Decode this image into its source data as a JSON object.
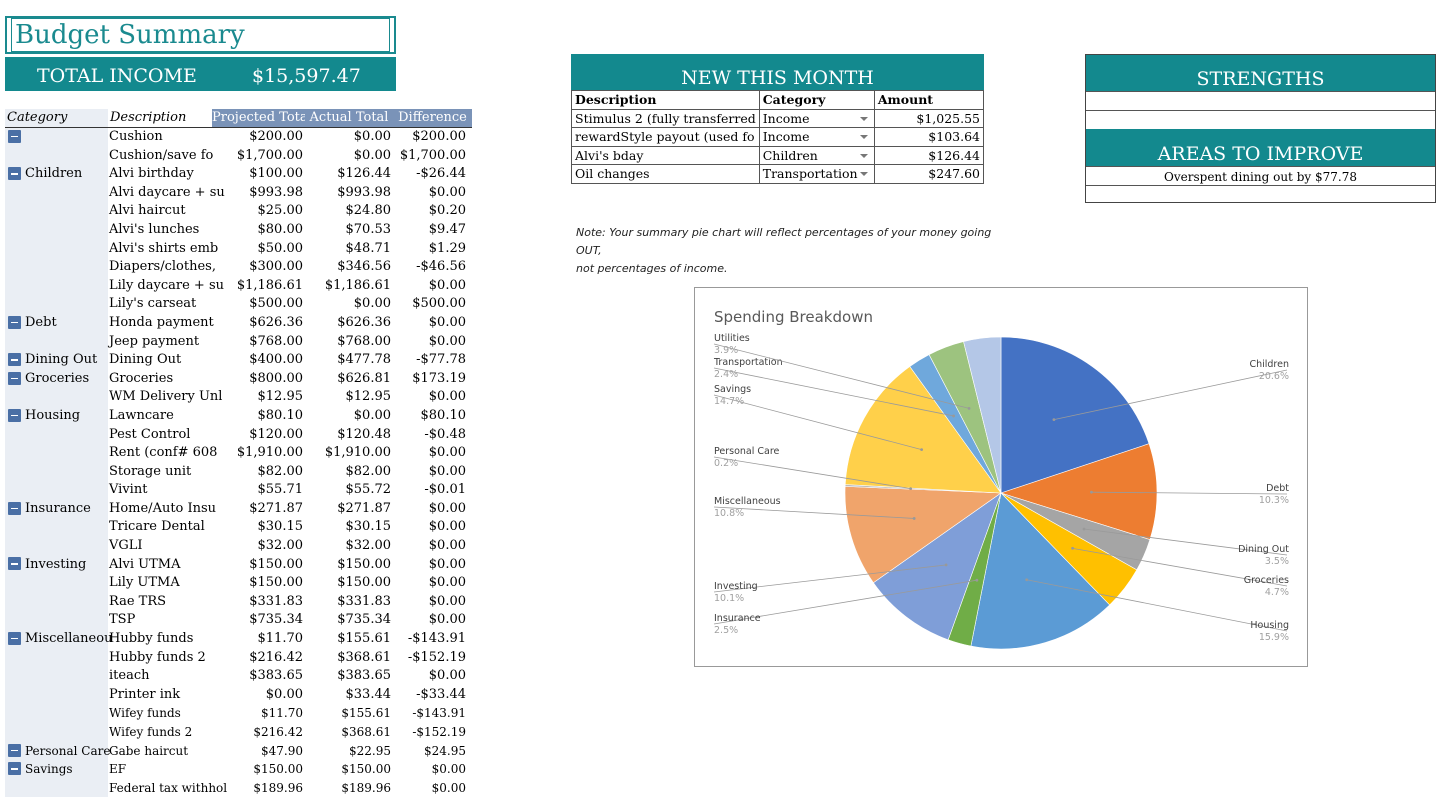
{
  "title": "Budget Summary",
  "total_income": {
    "label": "TOTAL INCOME",
    "value": "$15,597.47"
  },
  "table": {
    "headers": {
      "category": "Category",
      "description": "Description",
      "projected": "Projected Total",
      "actual": "Actual Total",
      "difference": "Difference"
    },
    "rows": [
      {
        "category": "",
        "group": true,
        "desc": "Cushion",
        "proj": "$200.00",
        "act": "$0.00",
        "diff": "$200.00"
      },
      {
        "category": "",
        "group": false,
        "desc": "Cushion/save fo",
        "proj": "$1,700.00",
        "act": "$0.00",
        "diff": "$1,700.00"
      },
      {
        "category": "Children",
        "group": true,
        "desc": "Alvi birthday",
        "proj": "$100.00",
        "act": "$126.44",
        "diff": "-$26.44"
      },
      {
        "category": "",
        "group": false,
        "desc": "Alvi daycare + su",
        "proj": "$993.98",
        "act": "$993.98",
        "diff": "$0.00"
      },
      {
        "category": "",
        "group": false,
        "desc": "Alvi haircut",
        "proj": "$25.00",
        "act": "$24.80",
        "diff": "$0.20"
      },
      {
        "category": "",
        "group": false,
        "desc": "Alvi's lunches",
        "proj": "$80.00",
        "act": "$70.53",
        "diff": "$9.47"
      },
      {
        "category": "",
        "group": false,
        "desc": "Alvi's shirts emb",
        "proj": "$50.00",
        "act": "$48.71",
        "diff": "$1.29"
      },
      {
        "category": "",
        "group": false,
        "desc": "Diapers/clothes,",
        "proj": "$300.00",
        "act": "$346.56",
        "diff": "-$46.56"
      },
      {
        "category": "",
        "group": false,
        "desc": "Lily daycare + su",
        "proj": "$1,186.61",
        "act": "$1,186.61",
        "diff": "$0.00"
      },
      {
        "category": "",
        "group": false,
        "desc": "Lily's carseat",
        "proj": "$500.00",
        "act": "$0.00",
        "diff": "$500.00"
      },
      {
        "category": "Debt",
        "group": true,
        "desc": "Honda payment",
        "proj": "$626.36",
        "act": "$626.36",
        "diff": "$0.00"
      },
      {
        "category": "",
        "group": false,
        "desc": "Jeep payment",
        "proj": "$768.00",
        "act": "$768.00",
        "diff": "$0.00"
      },
      {
        "category": "Dining Out",
        "group": true,
        "desc": "Dining Out",
        "proj": "$400.00",
        "act": "$477.78",
        "diff": "-$77.78"
      },
      {
        "category": "Groceries",
        "group": true,
        "desc": "Groceries",
        "proj": "$800.00",
        "act": "$626.81",
        "diff": "$173.19"
      },
      {
        "category": "",
        "group": false,
        "desc": "WM Delivery Unl",
        "proj": "$12.95",
        "act": "$12.95",
        "diff": "$0.00"
      },
      {
        "category": "Housing",
        "group": true,
        "desc": "Lawncare",
        "proj": "$80.10",
        "act": "$0.00",
        "diff": "$80.10"
      },
      {
        "category": "",
        "group": false,
        "desc": "Pest Control",
        "proj": "$120.00",
        "act": "$120.48",
        "diff": "-$0.48"
      },
      {
        "category": "",
        "group": false,
        "desc": "Rent (conf# 608",
        "proj": "$1,910.00",
        "act": "$1,910.00",
        "diff": "$0.00"
      },
      {
        "category": "",
        "group": false,
        "desc": "Storage unit",
        "proj": "$82.00",
        "act": "$82.00",
        "diff": "$0.00"
      },
      {
        "category": "",
        "group": false,
        "desc": "Vivint",
        "proj": "$55.71",
        "act": "$55.72",
        "diff": "-$0.01"
      },
      {
        "category": "Insurance",
        "group": true,
        "desc": "Home/Auto Insu",
        "proj": "$271.87",
        "act": "$271.87",
        "diff": "$0.00"
      },
      {
        "category": "",
        "group": false,
        "desc": "Tricare Dental",
        "proj": "$30.15",
        "act": "$30.15",
        "diff": "$0.00"
      },
      {
        "category": "",
        "group": false,
        "desc": "VGLI",
        "proj": "$32.00",
        "act": "$32.00",
        "diff": "$0.00"
      },
      {
        "category": "Investing",
        "group": true,
        "desc": "Alvi UTMA",
        "proj": "$150.00",
        "act": "$150.00",
        "diff": "$0.00"
      },
      {
        "category": "",
        "group": false,
        "desc": "Lily UTMA",
        "proj": "$150.00",
        "act": "$150.00",
        "diff": "$0.00"
      },
      {
        "category": "",
        "group": false,
        "desc": "Rae TRS",
        "proj": "$331.83",
        "act": "$331.83",
        "diff": "$0.00"
      },
      {
        "category": "",
        "group": false,
        "desc": "TSP",
        "proj": "$735.34",
        "act": "$735.34",
        "diff": "$0.00"
      },
      {
        "category": "Miscellaneou",
        "group": true,
        "desc": "Hubby funds",
        "proj": "$11.70",
        "act": "$155.61",
        "diff": "-$143.91"
      },
      {
        "category": "",
        "group": false,
        "desc": "Hubby funds 2",
        "proj": "$216.42",
        "act": "$368.61",
        "diff": "-$152.19"
      },
      {
        "category": "",
        "group": false,
        "desc": "iteach",
        "proj": "$383.65",
        "act": "$383.65",
        "diff": "$0.00"
      },
      {
        "category": "",
        "group": false,
        "desc": "Printer ink",
        "proj": "$0.00",
        "act": "$33.44",
        "diff": "-$33.44"
      },
      {
        "category": "",
        "group": false,
        "desc": "Wifey funds",
        "proj": "$11.70",
        "act": "$155.61",
        "diff": "-$143.91",
        "small": true
      },
      {
        "category": "",
        "group": false,
        "desc": "Wifey funds 2",
        "proj": "$216.42",
        "act": "$368.61",
        "diff": "-$152.19",
        "small": true
      },
      {
        "category": "Personal Care",
        "group": true,
        "desc": "Gabe haircut",
        "proj": "$47.90",
        "act": "$22.95",
        "diff": "$24.95",
        "small": true
      },
      {
        "category": "Savings",
        "group": true,
        "desc": "EF",
        "proj": "$150.00",
        "act": "$150.00",
        "diff": "$0.00",
        "small": true
      },
      {
        "category": "",
        "group": false,
        "desc": "Federal tax withhol",
        "proj": "$189.96",
        "act": "$189.96",
        "diff": "$0.00",
        "small": true
      }
    ]
  },
  "new_this_month": {
    "title": "NEW THIS MONTH",
    "headers": {
      "description": "Description",
      "category": "Category",
      "amount": "Amount"
    },
    "rows": [
      {
        "desc": "Stimulus 2 (fully transferred",
        "cat": "Income",
        "amt": "$1,025.55"
      },
      {
        "desc": "rewardStyle payout (used fo",
        "cat": "Income",
        "amt": "$103.64"
      },
      {
        "desc": "Alvi's bday",
        "cat": "Children",
        "amt": "$126.44"
      },
      {
        "desc": "Oil changes",
        "cat": "Transportation",
        "amt": "$247.60"
      }
    ]
  },
  "note": {
    "line1": "Note: Your summary pie chart will reflect percentages of your money going OUT,",
    "line2": "not percentages of income."
  },
  "strengths": {
    "title": "STRENGTHS"
  },
  "areas_to_improve": {
    "title": "AREAS TO IMPROVE",
    "item": "Overspent dining out by $77.78"
  },
  "chart_data": {
    "type": "pie",
    "title": "Spending Breakdown",
    "slices": [
      {
        "label": "Children",
        "pct": "20.6%",
        "value": 20.6,
        "color": "#4472c4"
      },
      {
        "label": "Debt",
        "pct": "10.3%",
        "value": 10.3,
        "color": "#ed7d31"
      },
      {
        "label": "Dining Out",
        "pct": "3.5%",
        "value": 3.5,
        "color": "#a5a5a5"
      },
      {
        "label": "Groceries",
        "pct": "4.7%",
        "value": 4.7,
        "color": "#ffc000"
      },
      {
        "label": "Housing",
        "pct": "15.9%",
        "value": 15.9,
        "color": "#5b9bd5"
      },
      {
        "label": "Insurance",
        "pct": "2.5%",
        "value": 2.5,
        "color": "#70ad47"
      },
      {
        "label": "Investing",
        "pct": "10.1%",
        "value": 10.1,
        "color": "#7f9ed8"
      },
      {
        "label": "Miscellaneous",
        "pct": "10.8%",
        "value": 10.8,
        "color": "#f0a46b"
      },
      {
        "label": "Personal Care",
        "pct": "0.2%",
        "value": 0.2,
        "color": "#bcbcbc"
      },
      {
        "label": "Savings",
        "pct": "14.7%",
        "value": 14.7,
        "color": "#ffd04a"
      },
      {
        "label": "Transportation",
        "pct": "2.4%",
        "value": 2.4,
        "color": "#6fa8dc"
      },
      {
        "label": "Utilities",
        "pct": "3.9%",
        "value": 3.9,
        "color": "#9dc37f"
      },
      {
        "label": "",
        "pct": "",
        "value": 4.0,
        "color": "#b4c7e7"
      }
    ]
  }
}
